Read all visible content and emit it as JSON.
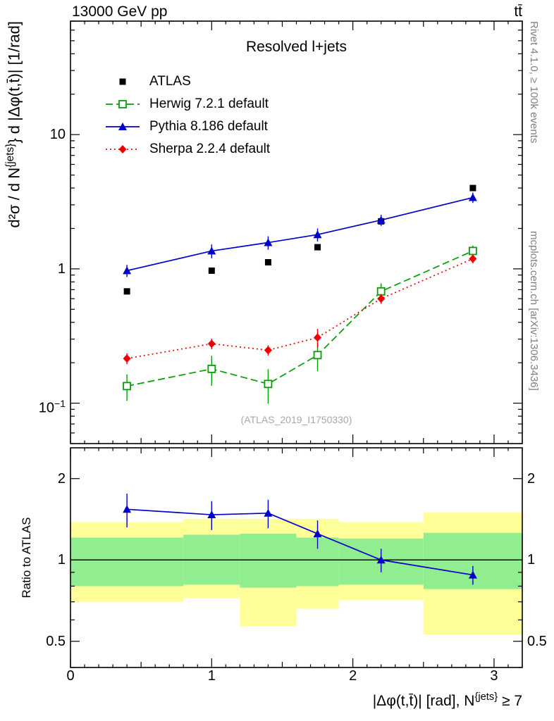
{
  "header": {
    "left": "13000 GeV pp",
    "right": "tt̄"
  },
  "panel_title": "Resolved l+jets",
  "watermark": "(ATLAS_2019_I1750330)",
  "side_notes": {
    "top": "Rivet 4.1.0, ≥ 100k events",
    "bottom": "mcplots.cern.ch [arXiv:1306.3436]"
  },
  "labels": {
    "ylabel_pre": "d²σ / d N",
    "ylabel_sup": "{jets}",
    "ylabel_post": "} d |Δφ(t,t̄)| [1/rad]",
    "ratio_ylabel": "Ratio to ATLAS",
    "xlabel_pre": "|Δφ(t,t̄)| [rad], N",
    "xlabel_sup": "{jets}",
    "xlabel_post": " ≥ 7"
  },
  "legend": {
    "items": [
      {
        "label": "ATLAS",
        "color": "#000000",
        "marker": "square-filled",
        "line": "none"
      },
      {
        "label": "Herwig 7.2.1 default",
        "color": "#00a000",
        "marker": "square-open",
        "line": "dashed"
      },
      {
        "label": "Pythia 8.186 default",
        "color": "#0000cc",
        "marker": "triangle-filled",
        "line": "solid"
      },
      {
        "label": "Sherpa 2.2.4 default",
        "color": "#ee0000",
        "marker": "diamond-filled",
        "line": "dotted"
      }
    ]
  },
  "chart_data": {
    "type": "line",
    "title": "Resolved l+jets",
    "axes": {
      "xlim": [
        0,
        3.2
      ],
      "main_ylim": [
        0.05,
        70
      ],
      "ratio_ylim": [
        0.4,
        2.6
      ],
      "main_ylog": true,
      "ratio_ylog": true,
      "x_ticks_labeled": [
        {
          "v": 0,
          "t": "0"
        },
        {
          "v": 1,
          "t": "1"
        },
        {
          "v": 2,
          "t": "2"
        },
        {
          "v": 3,
          "t": "3"
        }
      ],
      "main_y_ticks_labeled": [
        {
          "v": 10,
          "t": "10"
        },
        {
          "v": 1,
          "t": "1"
        },
        {
          "v": 0.1,
          "t": "10",
          "sup": "−1"
        }
      ],
      "ratio_y_ticks_labeled": [
        {
          "v": 2,
          "t": "2"
        },
        {
          "v": 1,
          "t": "1"
        },
        {
          "v": 0.5,
          "t": "0.5"
        }
      ]
    },
    "x": [
      0.4,
      1.0,
      1.4,
      1.75,
      2.2,
      2.85
    ],
    "series": [
      {
        "name": "ATLAS",
        "color": "#000000",
        "marker": "square-filled",
        "line": "none",
        "y": [
          0.68,
          0.97,
          1.12,
          1.45,
          2.26,
          4.0
        ],
        "yerr": [
          0.02,
          0.03,
          0.04,
          0.05,
          0.08,
          0.15
        ]
      },
      {
        "name": "Herwig 7.2.1 default",
        "color": "#00a000",
        "marker": "square-open",
        "line": "dashed",
        "y": [
          0.134,
          0.18,
          0.139,
          0.228,
          0.68,
          1.36
        ],
        "yerr": [
          0.03,
          0.045,
          0.04,
          0.055,
          0.1,
          0.13
        ]
      },
      {
        "name": "Pythia 8.186 default",
        "color": "#0000cc",
        "marker": "triangle-filled",
        "line": "solid",
        "y": [
          0.97,
          1.36,
          1.57,
          1.8,
          2.31,
          3.4
        ],
        "yerr": [
          0.1,
          0.16,
          0.18,
          0.2,
          0.22,
          0.3
        ]
      },
      {
        "name": "Sherpa 2.2.4 default",
        "color": "#ee0000",
        "marker": "diamond-filled",
        "line": "dotted",
        "y": [
          0.215,
          0.277,
          0.248,
          0.308,
          0.6,
          1.19
        ],
        "yerr": [
          0.02,
          0.025,
          0.022,
          0.05,
          0.05,
          0.09
        ]
      }
    ],
    "ratio": {
      "reference_line_at": 1,
      "band_edges": [
        0,
        0.8,
        1.2,
        1.6,
        1.9,
        2.5,
        3.2
      ],
      "yellow_band": [
        [
          0.7,
          1.38
        ],
        [
          0.72,
          1.42
        ],
        [
          0.57,
          1.42
        ],
        [
          0.66,
          1.42
        ],
        [
          0.71,
          1.38
        ],
        [
          0.53,
          1.5
        ]
      ],
      "green_band": [
        [
          0.8,
          1.21
        ],
        [
          0.81,
          1.24
        ],
        [
          0.79,
          1.25
        ],
        [
          0.8,
          1.21
        ],
        [
          0.81,
          1.2
        ],
        [
          0.78,
          1.26
        ]
      ],
      "series": [
        {
          "name": "Pythia 8.186 default",
          "color": "#0000cc",
          "marker": "triangle-filled",
          "line": "solid",
          "y": [
            1.54,
            1.47,
            1.49,
            1.25,
            1.0,
            0.88
          ],
          "yerr": [
            0.22,
            0.18,
            0.18,
            0.15,
            0.1,
            0.07
          ]
        }
      ]
    },
    "colors": {
      "yellow_band": "#ffff9a",
      "green_band": "#90ee90",
      "frame": "#000000"
    }
  }
}
